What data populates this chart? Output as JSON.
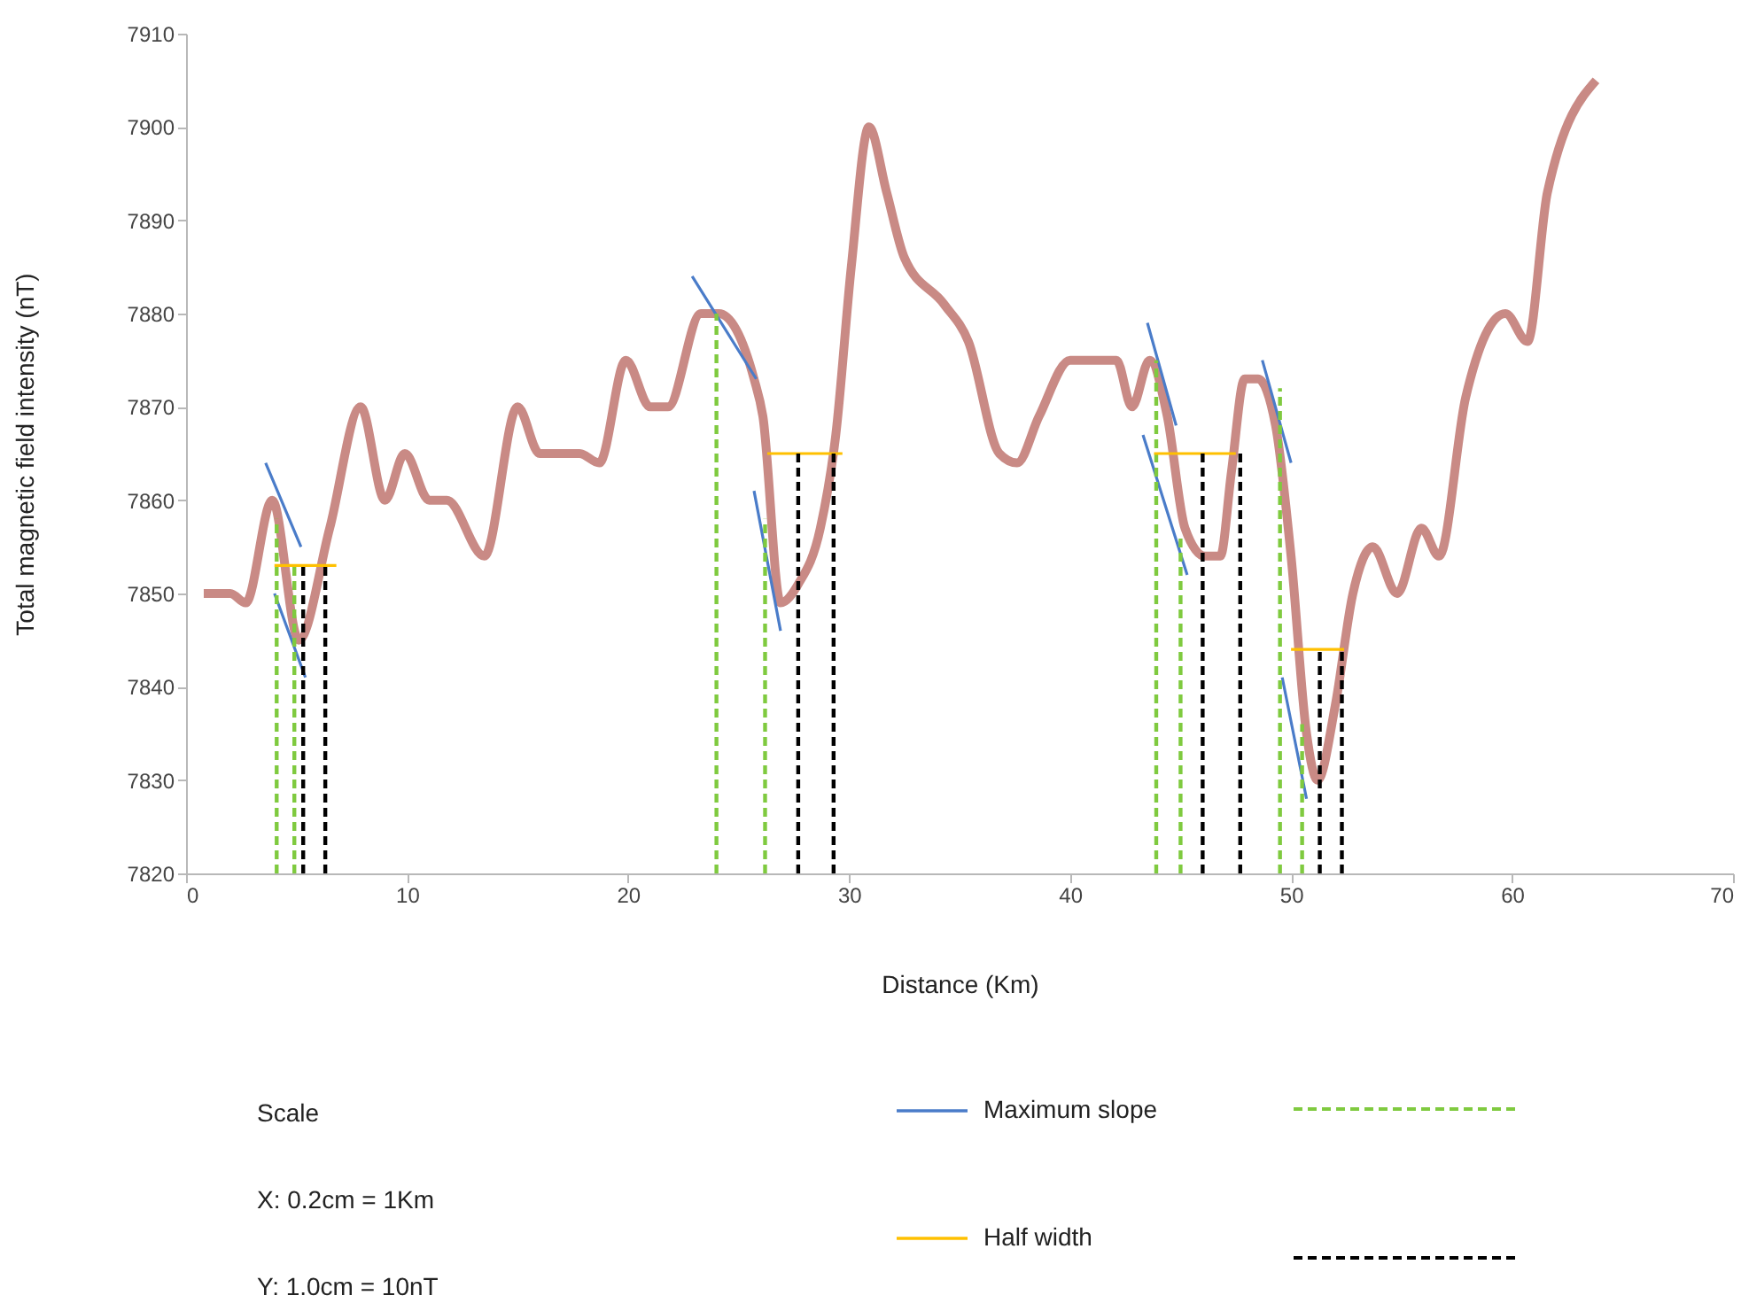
{
  "chart_data": {
    "type": "line",
    "xlabel": "Distance (Km)",
    "ylabel": "Total magnetic field intensity (nT)",
    "xlim": [
      0,
      70
    ],
    "xticks": [
      0,
      10,
      20,
      30,
      40,
      50,
      60,
      70
    ],
    "ylim": [
      7820,
      7910
    ],
    "yticks": [
      7820,
      7830,
      7840,
      7850,
      7860,
      7870,
      7880,
      7890,
      7900,
      7910
    ],
    "grid": false,
    "legend": "bottom",
    "marker": "none",
    "annotations": [
      "Scale",
      "X: 0.2cm = 1Km",
      "Y: 1.0cm = 10nT"
    ],
    "series": [
      {
        "color": "#c98a85",
        "line_style": "solid",
        "x": [
          0.8,
          2.0,
          2.7,
          3.9,
          5.1,
          6.5,
          7.9,
          9.0,
          9.9,
          11.0,
          11.8,
          13.5,
          15.0,
          16.0,
          17.8,
          18.7,
          19.9,
          21.0,
          21.8,
          23.3,
          24.1,
          25.7,
          26.1,
          26.9,
          27.7,
          28.7,
          29.4,
          30.1,
          30.9,
          31.7,
          32.5,
          34.3,
          35.4,
          36.8,
          37.6,
          38.6,
          40.0,
          41.3,
          42.1,
          42.8,
          43.6,
          44.4,
          45.2,
          46.1,
          46.8,
          47.3,
          47.9,
          48.5,
          49.3,
          50.0,
          50.7,
          51.2,
          52.0,
          52.8,
          53.7,
          54.8,
          55.9,
          56.7,
          57.9,
          59.7,
          60.7,
          61.6,
          63.8
        ],
        "values": [
          7850,
          7850,
          7849,
          7860,
          7845,
          7857,
          7870,
          7860,
          7865,
          7860,
          7860,
          7854,
          7870,
          7865,
          7865,
          7864,
          7875,
          7870,
          7870,
          7880,
          7880,
          7873,
          7869,
          7849,
          7851,
          7857,
          7867,
          7885,
          7900,
          7893,
          7886,
          7881,
          7877,
          7865,
          7864,
          7869,
          7875,
          7875,
          7875,
          7870,
          7875,
          7869,
          7857,
          7854,
          7854,
          7863,
          7873,
          7873,
          7868,
          7854,
          7835,
          7830,
          7838,
          7850,
          7855,
          7850,
          7857,
          7854,
          7871,
          7880,
          7877,
          7893,
          7905
        ]
      },
      {
        "name": "Maximum slope",
        "color": "#4a7cc9",
        "line_style": "solid",
        "x": [
          3.6,
          5.2,
          null,
          4.0,
          5.4,
          null,
          22.9,
          25.8,
          null,
          25.7,
          26.9,
          null,
          43.5,
          44.8,
          null,
          43.3,
          45.3,
          null,
          48.7,
          50.0,
          null,
          49.6,
          50.7
        ],
        "values": [
          7864,
          7855,
          null,
          7850,
          7841,
          null,
          7884,
          7873,
          null,
          7861,
          7846,
          null,
          7879,
          7868,
          null,
          7867,
          7852,
          null,
          7875,
          7864,
          null,
          7841,
          7828
        ]
      },
      {
        "color": "#7fca3f",
        "line_style": "dashed",
        "x": [
          4.1,
          4.1,
          null,
          4.9,
          4.9,
          null,
          24.0,
          24.0,
          null,
          26.2,
          26.2,
          null,
          43.9,
          43.9,
          null,
          45.0,
          45.0,
          null,
          49.5,
          49.5,
          null,
          50.5,
          50.5
        ],
        "values": [
          7820,
          7858,
          null,
          7820,
          7853,
          null,
          7820,
          7880,
          null,
          7820,
          7858,
          null,
          7820,
          7875,
          null,
          7820,
          7856,
          null,
          7820,
          7872,
          null,
          7820,
          7836
        ]
      },
      {
        "name": "Half width",
        "color": "#ffc000",
        "line_style": "solid",
        "x": [
          4.0,
          6.8,
          null,
          26.3,
          29.7,
          null,
          43.8,
          47.5,
          null,
          50.0,
          52.4
        ],
        "values": [
          7853,
          7853,
          null,
          7865,
          7865,
          null,
          7865,
          7865,
          null,
          7844,
          7844
        ]
      },
      {
        "color": "#000000",
        "line_style": "dashed",
        "x": [
          5.3,
          5.3,
          null,
          6.3,
          6.3,
          null,
          27.7,
          27.7,
          null,
          29.3,
          29.3,
          null,
          46.0,
          46.0,
          null,
          47.7,
          47.7,
          null,
          51.3,
          51.3,
          null,
          52.3,
          52.3
        ],
        "values": [
          7820,
          7853,
          null,
          7820,
          7853,
          null,
          7820,
          7865,
          null,
          7820,
          7865,
          null,
          7820,
          7865,
          null,
          7820,
          7865,
          null,
          7820,
          7844,
          null,
          7820,
          7844
        ]
      }
    ]
  }
}
